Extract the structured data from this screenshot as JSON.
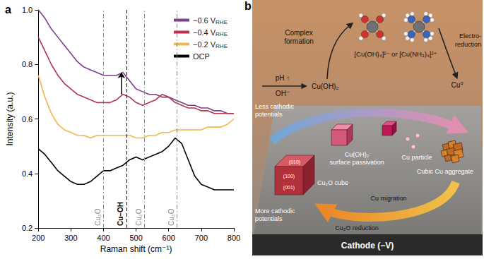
{
  "chart_data": {
    "type": "line",
    "panel": "a",
    "x_label": "Raman shift (cm⁻¹)",
    "y_label": "Intensity (a.u.)",
    "x": [
      200,
      220,
      240,
      260,
      280,
      300,
      320,
      340,
      360,
      380,
      400,
      420,
      440,
      460,
      480,
      500,
      520,
      540,
      560,
      580,
      600,
      620,
      640,
      660,
      680,
      700,
      720,
      740,
      760,
      780,
      800
    ],
    "series": [
      {
        "name": "−0.6 V",
        "subscript": "RHE",
        "color": "#7a3e8c",
        "values": [
          1.0,
          0.97,
          0.93,
          0.9,
          0.87,
          0.84,
          0.81,
          0.79,
          0.78,
          0.77,
          0.76,
          0.76,
          0.76,
          0.77,
          0.74,
          0.71,
          0.7,
          0.69,
          0.69,
          0.68,
          0.68,
          0.67,
          0.66,
          0.65,
          0.65,
          0.64,
          0.64,
          0.63,
          0.63,
          0.62,
          0.62
        ]
      },
      {
        "name": "−0.4 V",
        "subscript": "RHE",
        "color": "#b5334d",
        "values": [
          0.9,
          0.85,
          0.8,
          0.76,
          0.73,
          0.71,
          0.69,
          0.68,
          0.67,
          0.66,
          0.66,
          0.66,
          0.67,
          0.69,
          0.68,
          0.66,
          0.65,
          0.66,
          0.67,
          0.69,
          0.68,
          0.66,
          0.65,
          0.64,
          0.64,
          0.63,
          0.63,
          0.62,
          0.62,
          0.62,
          0.62
        ]
      },
      {
        "name": "−0.2 V",
        "subscript": "RHE",
        "color": "#efb848",
        "values": [
          0.76,
          0.68,
          0.62,
          0.58,
          0.56,
          0.55,
          0.54,
          0.54,
          0.53,
          0.54,
          0.54,
          0.54,
          0.54,
          0.54,
          0.54,
          0.53,
          0.53,
          0.54,
          0.54,
          0.55,
          0.55,
          0.56,
          0.56,
          0.56,
          0.56,
          0.56,
          0.57,
          0.57,
          0.57,
          0.58,
          0.6
        ]
      },
      {
        "name": "OCP",
        "color": "#000000",
        "values": [
          0.49,
          0.47,
          0.44,
          0.41,
          0.39,
          0.37,
          0.36,
          0.36,
          0.37,
          0.39,
          0.41,
          0.41,
          0.42,
          0.43,
          0.45,
          0.46,
          0.45,
          0.46,
          0.47,
          0.48,
          0.5,
          0.53,
          0.51,
          0.45,
          0.39,
          0.36,
          0.35,
          0.34,
          0.34,
          0.34,
          0.34
        ]
      }
    ],
    "xlim": [
      200,
      800
    ],
    "xticks": [
      200,
      300,
      400,
      500,
      600,
      700,
      800
    ],
    "ylim": [
      0.2,
      1.0
    ],
    "yticks": [
      0.2,
      0.4,
      0.6,
      0.8,
      {
        "value": 1,
        "label": "1.0"
      }
    ],
    "grid": false,
    "legend": "top-right",
    "vlines": [
      {
        "x": 400,
        "label": "Cu₂O",
        "color": "#888888",
        "line_style": "dashdot"
      },
      {
        "x": 470,
        "label": "Cu–OH",
        "color": "#000000",
        "line_style": "dashed"
      },
      {
        "x": 525,
        "label": "Cu₂O",
        "color": "#888888",
        "line_style": "dashdot"
      },
      {
        "x": 625,
        "label": "Cu₂O",
        "color": "#888888",
        "line_style": "dashdot"
      }
    ],
    "arrow": {
      "x": 455,
      "y_from": 0.69,
      "y_to": 0.77
    }
  },
  "diagram": {
    "panel": "b",
    "complex_formation": [
      "Complex",
      "formation"
    ],
    "electro_reduction": [
      "Electro-",
      "reduction"
    ],
    "complex_ions": "[Cu(OH)₄]²⁻ or [Cu(NH₃)₄]²⁺",
    "ph": "pH ↑",
    "hydroxide": "OH⁻",
    "hydroxide_solid": "Cu(OH)₂",
    "copper_metal": "Cu⁰",
    "less_cathodic": [
      "Less cathodic",
      "potentials"
    ],
    "passivation": [
      "Cu(OH)₂",
      "surface passivation"
    ],
    "cu_particle": "Cu particle",
    "aggregate": "Cubic Cu aggregate",
    "facets": [
      "(010)",
      "(100)",
      "(001)"
    ],
    "cube": "Cu₂O cube",
    "migration": "Cu migration",
    "more_cathodic": [
      "More cathodic",
      "potentials"
    ],
    "reduction": "Cu₂O reduction",
    "cathode": "Cathode (−V)"
  }
}
